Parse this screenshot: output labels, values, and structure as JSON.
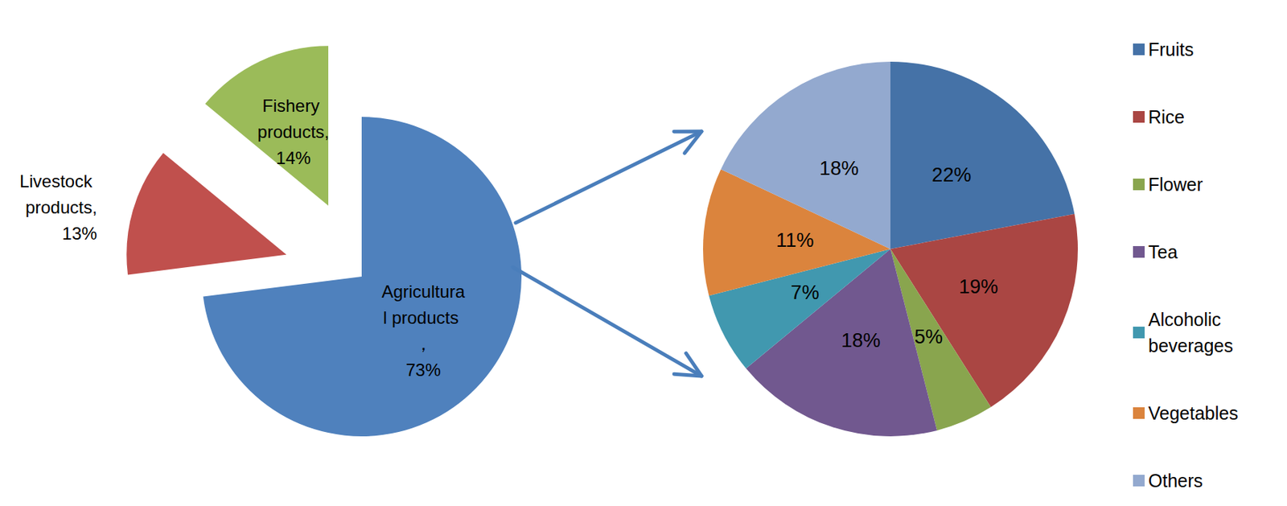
{
  "chart_data": [
    {
      "type": "pie",
      "categories": [
        "Agricultural products ，",
        "Livestock products,",
        "Fishery products,"
      ],
      "values": [
        73,
        13,
        14
      ],
      "value_labels": [
        "73%",
        "13%",
        "14%"
      ],
      "colors": [
        "#4F81BD",
        "#C0504D",
        "#9BBB59"
      ],
      "data_labels": true
    },
    {
      "type": "pie",
      "categories": [
        "Fruits",
        "Rice",
        "Flower",
        "Tea",
        "Alcoholic beverages",
        "Vegetables",
        "Others"
      ],
      "values": [
        22,
        19,
        5,
        18,
        7,
        11,
        18
      ],
      "value_labels": [
        "22%",
        "19%",
        "5%",
        "18%",
        "7%",
        "11%",
        "18%"
      ],
      "colors": [
        "#4572A7",
        "#AA4643",
        "#89A54E",
        "#71588F",
        "#4198AF",
        "#DB843D",
        "#93A9CF"
      ],
      "data_labels": true,
      "legend": "right"
    }
  ]
}
